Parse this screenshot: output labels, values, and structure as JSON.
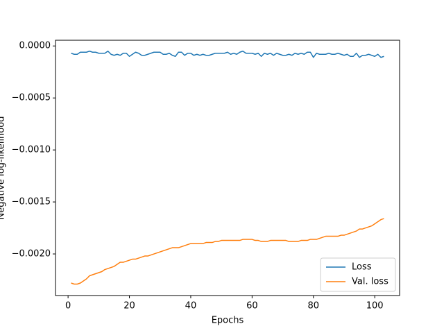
{
  "chart_data": {
    "type": "line",
    "xlabel": "Epochs",
    "ylabel": "Negative log-likelihood",
    "x": [
      1,
      2,
      3,
      4,
      5,
      6,
      7,
      8,
      9,
      10,
      11,
      12,
      13,
      14,
      15,
      16,
      17,
      18,
      19,
      20,
      21,
      22,
      23,
      24,
      25,
      26,
      27,
      28,
      29,
      30,
      31,
      32,
      33,
      34,
      35,
      36,
      37,
      38,
      39,
      40,
      41,
      42,
      43,
      44,
      45,
      46,
      47,
      48,
      49,
      50,
      51,
      52,
      53,
      54,
      55,
      56,
      57,
      58,
      59,
      60,
      61,
      62,
      63,
      64,
      65,
      66,
      67,
      68,
      69,
      70,
      71,
      72,
      73,
      74,
      75,
      76,
      77,
      78,
      79,
      80,
      81,
      82,
      83,
      84,
      85,
      86,
      87,
      88,
      89,
      90,
      91,
      92,
      93,
      94,
      95,
      96,
      97,
      98,
      99,
      100,
      101,
      102,
      103
    ],
    "series": [
      {
        "name": "Loss",
        "color": "#1f77b4",
        "values": [
          -7e-05,
          -8e-05,
          -8e-05,
          -6e-05,
          -6e-05,
          -6e-05,
          -5e-05,
          -6e-05,
          -6e-05,
          -7e-05,
          -7e-05,
          -7e-05,
          -5e-05,
          -8e-05,
          -9e-05,
          -8e-05,
          -9e-05,
          -7e-05,
          -7e-05,
          -0.0001,
          -8e-05,
          -6e-05,
          -7e-05,
          -9e-05,
          -9e-05,
          -8e-05,
          -7e-05,
          -6e-05,
          -6e-05,
          -6e-05,
          -8e-05,
          -8e-05,
          -7e-05,
          -9e-05,
          -0.0001,
          -6e-05,
          -6e-05,
          -9e-05,
          -7e-05,
          -7e-05,
          -9e-05,
          -8e-05,
          -9e-05,
          -8e-05,
          -9e-05,
          -9e-05,
          -8e-05,
          -7e-05,
          -7e-05,
          -7e-05,
          -7e-05,
          -6e-05,
          -8e-05,
          -7e-05,
          -8e-05,
          -6e-05,
          -5e-05,
          -7e-05,
          -7e-05,
          -7e-05,
          -8e-05,
          -7e-05,
          -0.0001,
          -7e-05,
          -8e-05,
          -7e-05,
          -9e-05,
          -7e-05,
          -8e-05,
          -9e-05,
          -9e-05,
          -8e-05,
          -9e-05,
          -7e-05,
          -8e-05,
          -7e-05,
          -8e-05,
          -6e-05,
          -6e-05,
          -0.00011,
          -7e-05,
          -8e-05,
          -8e-05,
          -8e-05,
          -7e-05,
          -8e-05,
          -8e-05,
          -7e-05,
          -8e-05,
          -9e-05,
          -8e-05,
          -0.0001,
          -0.0001,
          -7e-05,
          -0.00011,
          -9e-05,
          -9e-05,
          -8e-05,
          -9e-05,
          -0.0001,
          -8e-05,
          -0.00011,
          -0.0001
        ]
      },
      {
        "name": "Val. loss",
        "color": "#ff7f0e",
        "values": [
          -0.00228,
          -0.00229,
          -0.00229,
          -0.00228,
          -0.00226,
          -0.00224,
          -0.00221,
          -0.0022,
          -0.00219,
          -0.00218,
          -0.00217,
          -0.00215,
          -0.00214,
          -0.00213,
          -0.00212,
          -0.0021,
          -0.00208,
          -0.00208,
          -0.00207,
          -0.00206,
          -0.00205,
          -0.00205,
          -0.00204,
          -0.00203,
          -0.00202,
          -0.00202,
          -0.00201,
          -0.002,
          -0.00199,
          -0.00198,
          -0.00197,
          -0.00196,
          -0.00195,
          -0.00194,
          -0.00194,
          -0.00194,
          -0.00193,
          -0.00192,
          -0.00191,
          -0.0019,
          -0.0019,
          -0.0019,
          -0.0019,
          -0.0019,
          -0.00189,
          -0.00189,
          -0.00189,
          -0.00188,
          -0.00188,
          -0.00187,
          -0.00187,
          -0.00187,
          -0.00187,
          -0.00187,
          -0.00187,
          -0.00187,
          -0.00186,
          -0.00186,
          -0.00186,
          -0.00186,
          -0.00187,
          -0.00187,
          -0.00188,
          -0.00188,
          -0.00188,
          -0.00187,
          -0.00187,
          -0.00187,
          -0.00187,
          -0.00187,
          -0.00187,
          -0.00188,
          -0.00188,
          -0.00188,
          -0.00188,
          -0.00187,
          -0.00187,
          -0.00187,
          -0.00186,
          -0.00186,
          -0.00186,
          -0.00185,
          -0.00184,
          -0.00183,
          -0.00183,
          -0.00183,
          -0.00183,
          -0.00183,
          -0.00182,
          -0.00182,
          -0.00181,
          -0.0018,
          -0.00179,
          -0.00178,
          -0.00176,
          -0.00176,
          -0.00175,
          -0.00174,
          -0.00173,
          -0.00171,
          -0.00169,
          -0.00167,
          -0.00166
        ]
      }
    ],
    "xlim": [
      -4.1,
      108.1
    ],
    "xticks": [
      0,
      20,
      40,
      60,
      80,
      100
    ],
    "ylim": [
      -0.0024,
      5.5e-05
    ],
    "yticks": [
      {
        "value": 0,
        "label": "0.0000"
      },
      {
        "value": -0.0005,
        "label": "−0.0005"
      },
      {
        "value": -0.001,
        "label": "−0.0010"
      },
      {
        "value": -0.0015,
        "label": "−0.0015"
      },
      {
        "value": -0.002,
        "label": "−0.0020"
      }
    ],
    "legend": "lower right",
    "grid": false
  }
}
